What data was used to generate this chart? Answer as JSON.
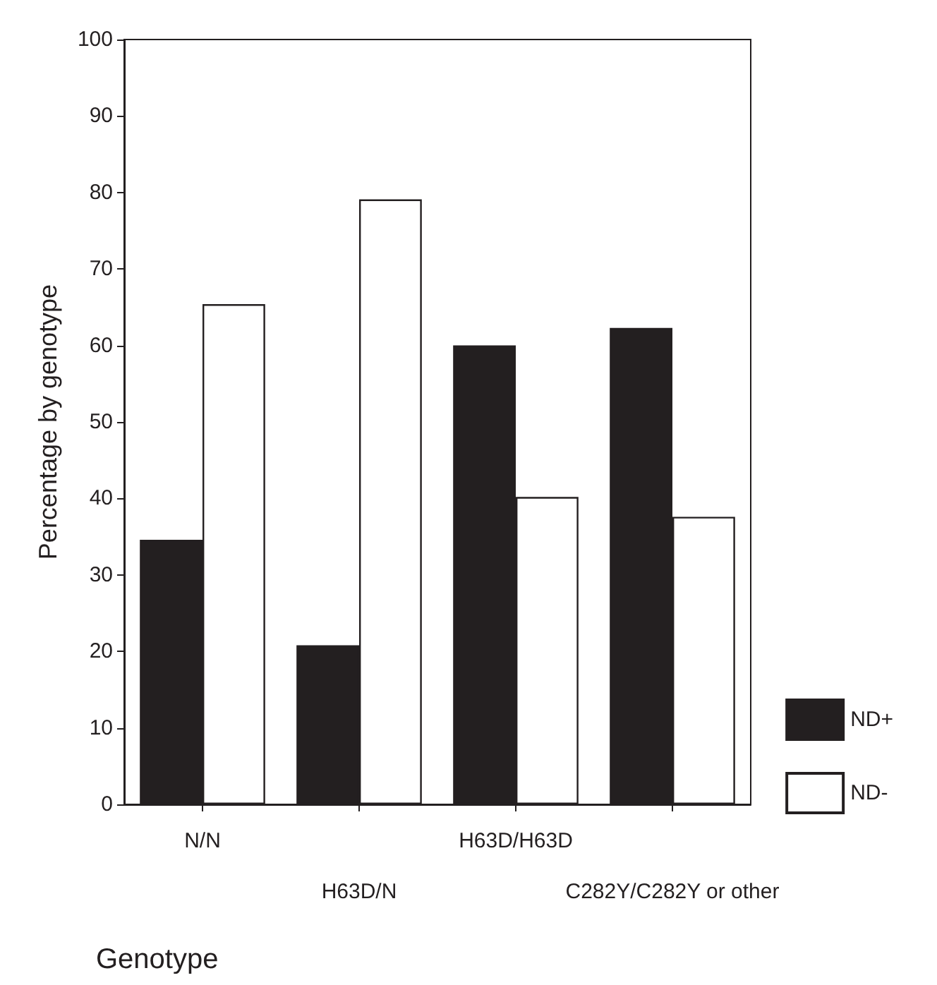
{
  "chart_data": {
    "type": "bar",
    "xlabel": "Genotype",
    "ylabel": "Percentage by genotype",
    "categories": [
      "N/N",
      "H63D/N",
      "H63D/H63D",
      "C282Y/C282Y or other"
    ],
    "series": [
      {
        "name": "ND+",
        "color": "#231f20",
        "values": [
          34.6,
          20.8,
          60,
          62.3
        ]
      },
      {
        "name": "ND-",
        "color": "#ffffff",
        "values": [
          65.4,
          79.1,
          40.2,
          37.6
        ]
      }
    ],
    "ylim": [
      0,
      100
    ],
    "yticks": [
      0,
      10,
      20,
      30,
      40,
      50,
      60,
      70,
      80,
      90,
      100
    ],
    "grid": false,
    "legend": "bottom right"
  }
}
